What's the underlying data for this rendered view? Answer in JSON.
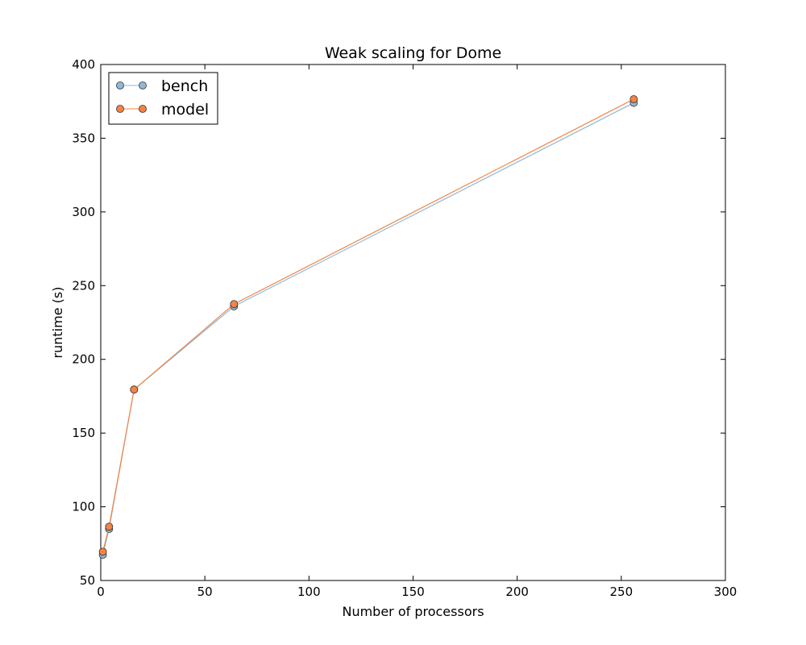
{
  "chart_data": {
    "type": "line",
    "title": "Weak scaling for Dome",
    "xlabel": "Number of processors",
    "ylabel": "runtime (s)",
    "xlim": [
      0,
      300
    ],
    "ylim": [
      50,
      400
    ],
    "xticks": [
      0,
      50,
      100,
      150,
      200,
      250,
      300
    ],
    "yticks": [
      50,
      100,
      150,
      200,
      250,
      300,
      350,
      400
    ],
    "grid": false,
    "legend_position": "top-left",
    "x": [
      1,
      4,
      16,
      64,
      256
    ],
    "series": [
      {
        "name": "bench",
        "color": "#8fb8d8",
        "edge": "#4a7fa8",
        "values": [
          67.5,
          85,
          179.5,
          236,
          374
        ]
      },
      {
        "name": "model",
        "color": "#f28444",
        "edge": "#c85a20",
        "values": [
          69.5,
          86.5,
          179.5,
          237.5,
          376.5
        ]
      }
    ]
  }
}
